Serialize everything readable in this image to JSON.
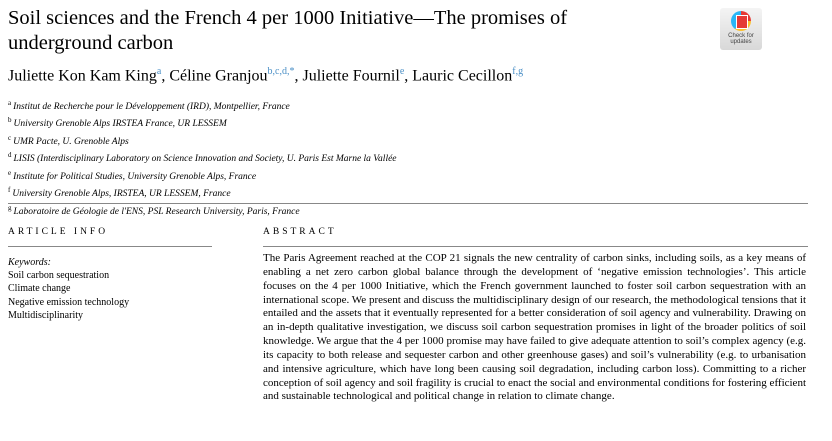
{
  "title": "Soil sciences and the French 4 per 1000 Initiative—The promises of underground carbon",
  "badge": {
    "line1": "Check for",
    "line2": "updates"
  },
  "authors": [
    {
      "name": "Juliette Kon Kam King",
      "sup": "a",
      "sep": ", "
    },
    {
      "name": "Céline Granjou",
      "sup": "b,c,d,*",
      "sep": ", "
    },
    {
      "name": "Juliette Fournil",
      "sup": "e",
      "sep": ", "
    },
    {
      "name": "Lauric Cecillon",
      "sup": "f,g",
      "sep": ""
    }
  ],
  "affiliations": [
    {
      "key": "a",
      "text": "Institut de Recherche pour le Développement (IRD), Montpellier, France"
    },
    {
      "key": "b",
      "text": "University Grenoble Alps IRSTEA France, UR LESSEM"
    },
    {
      "key": "c",
      "text": "UMR Pacte, U. Grenoble Alps"
    },
    {
      "key": "d",
      "text": "LISIS (Interdisciplinary Laboratory on Science Innovation and Society, U. Paris Est Marne la Vallée"
    },
    {
      "key": "e",
      "text": "Institute for Political Studies, University Grenoble Alps, France"
    },
    {
      "key": "f",
      "text": "University Grenoble Alps, IRSTEA, UR LESSEM, France"
    },
    {
      "key": "g",
      "text": "Laboratoire de Géologie de l'ENS, PSL Research University, Paris, France"
    }
  ],
  "article_info": {
    "heading": "ARTICLE INFO",
    "keywords_label": "Keywords:",
    "keywords": [
      "Soil carbon sequestration",
      "Climate change",
      "Negative emission technology",
      "Multidisciplinarity"
    ]
  },
  "abstract": {
    "heading": "ABSTRACT",
    "text": "The Paris Agreement reached at the COP 21 signals the new centrality of carbon sinks, including soils, as a key means of enabling a net zero carbon global balance through the development of ‘negative emission technologies’. This article focuses on the 4 per 1000 Initiative, which the French government launched to foster soil carbon sequestration with an international scope. We present and discuss the multidisciplinary design of our research, the methodological tensions that it entailed and the assets that it eventually represented for a better consideration of soil agency and vulnerability. Drawing on an in-depth qualitative investigation, we discuss soil carbon sequestration promises in light of the broader politics of soil knowledge. We argue that the 4 per 1000 promise may have failed to give adequate attention to soil’s complex agency (e.g. its capacity to both release and sequester carbon and other greenhouse gases) and soil’s vulnerability (e.g. to urbanisation and intensive agriculture, which have long been causing soil degradation, including carbon loss). Committing to a richer conception of soil agency and soil fragility is crucial to enact the social and environmental conditions for fostering efficient and sustainable technological and political change in relation to climate change."
  }
}
